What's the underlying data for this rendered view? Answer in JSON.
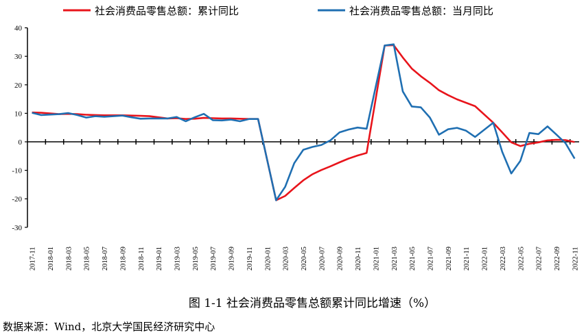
{
  "chart_data": {
    "type": "line",
    "title": "",
    "xlabel": "",
    "ylabel": "",
    "ylim": [
      -30,
      40
    ],
    "yticks": [
      -30,
      -20,
      -10,
      0,
      10,
      20,
      30,
      40
    ],
    "legend_position": "top",
    "x": [
      "2017-11",
      "2017-12",
      "2018-01",
      "2018-02",
      "2018-03",
      "2018-04",
      "2018-05",
      "2018-06",
      "2018-07",
      "2018-08",
      "2018-09",
      "2018-10",
      "2018-11",
      "2018-12",
      "2019-01",
      "2019-02",
      "2019-03",
      "2019-04",
      "2019-05",
      "2019-06",
      "2019-07",
      "2019-08",
      "2019-09",
      "2019-10",
      "2019-11",
      "2019-12",
      "2020-01",
      "2020-02",
      "2020-03",
      "2020-04",
      "2020-05",
      "2020-06",
      "2020-07",
      "2020-08",
      "2020-09",
      "2020-10",
      "2020-11",
      "2020-12",
      "2021-01",
      "2021-02",
      "2021-03",
      "2021-04",
      "2021-05",
      "2021-06",
      "2021-07",
      "2021-08",
      "2021-09",
      "2021-10",
      "2021-11",
      "2021-12",
      "2022-01",
      "2022-02",
      "2022-03",
      "2022-04",
      "2022-05",
      "2022-06",
      "2022-07",
      "2022-08",
      "2022-09",
      "2022-10",
      "2022-11"
    ],
    "series": [
      {
        "name": "社会消费品零售总额：累计同比",
        "color": "#e8141b",
        "values": [
          10.3,
          10.2,
          null,
          9.7,
          9.8,
          9.7,
          9.5,
          9.4,
          9.3,
          9.3,
          9.3,
          9.2,
          9.1,
          9.0,
          null,
          8.2,
          8.3,
          8.0,
          8.1,
          8.4,
          8.3,
          8.2,
          8.2,
          8.1,
          8.0,
          8.0,
          null,
          -20.5,
          -19.0,
          -16.2,
          -13.5,
          -11.4,
          -9.9,
          -8.6,
          -7.2,
          -5.9,
          -4.8,
          -3.9,
          null,
          33.8,
          33.9,
          29.6,
          25.7,
          23.0,
          20.7,
          18.1,
          16.4,
          14.9,
          13.7,
          12.5,
          null,
          6.7,
          3.3,
          -0.2,
          -1.5,
          -0.7,
          -0.2,
          0.5,
          0.7,
          0.6,
          -0.1
        ]
      },
      {
        "name": "社会消费品零售总额：当月同比",
        "color": "#1f6fb2",
        "values": [
          10.2,
          9.4,
          null,
          9.7,
          10.1,
          9.4,
          8.5,
          9.0,
          8.8,
          9.0,
          9.2,
          8.6,
          8.1,
          8.2,
          null,
          8.2,
          8.7,
          7.2,
          8.6,
          9.8,
          7.6,
          7.5,
          7.8,
          7.2,
          8.0,
          8.0,
          null,
          -20.5,
          -15.8,
          -7.5,
          -2.8,
          -1.8,
          -1.1,
          0.5,
          3.3,
          4.3,
          5.0,
          4.6,
          null,
          33.8,
          34.2,
          17.7,
          12.4,
          12.1,
          8.5,
          2.5,
          4.4,
          4.9,
          3.9,
          1.7,
          null,
          6.7,
          -3.5,
          -11.1,
          -6.7,
          3.1,
          2.7,
          5.4,
          2.5,
          -0.5,
          -5.9
        ]
      }
    ]
  },
  "caption": "图 1-1  社会消费品零售总额累计同比增速（%）",
  "source": "数据来源：Wind，北京大学国民经济研究中心"
}
